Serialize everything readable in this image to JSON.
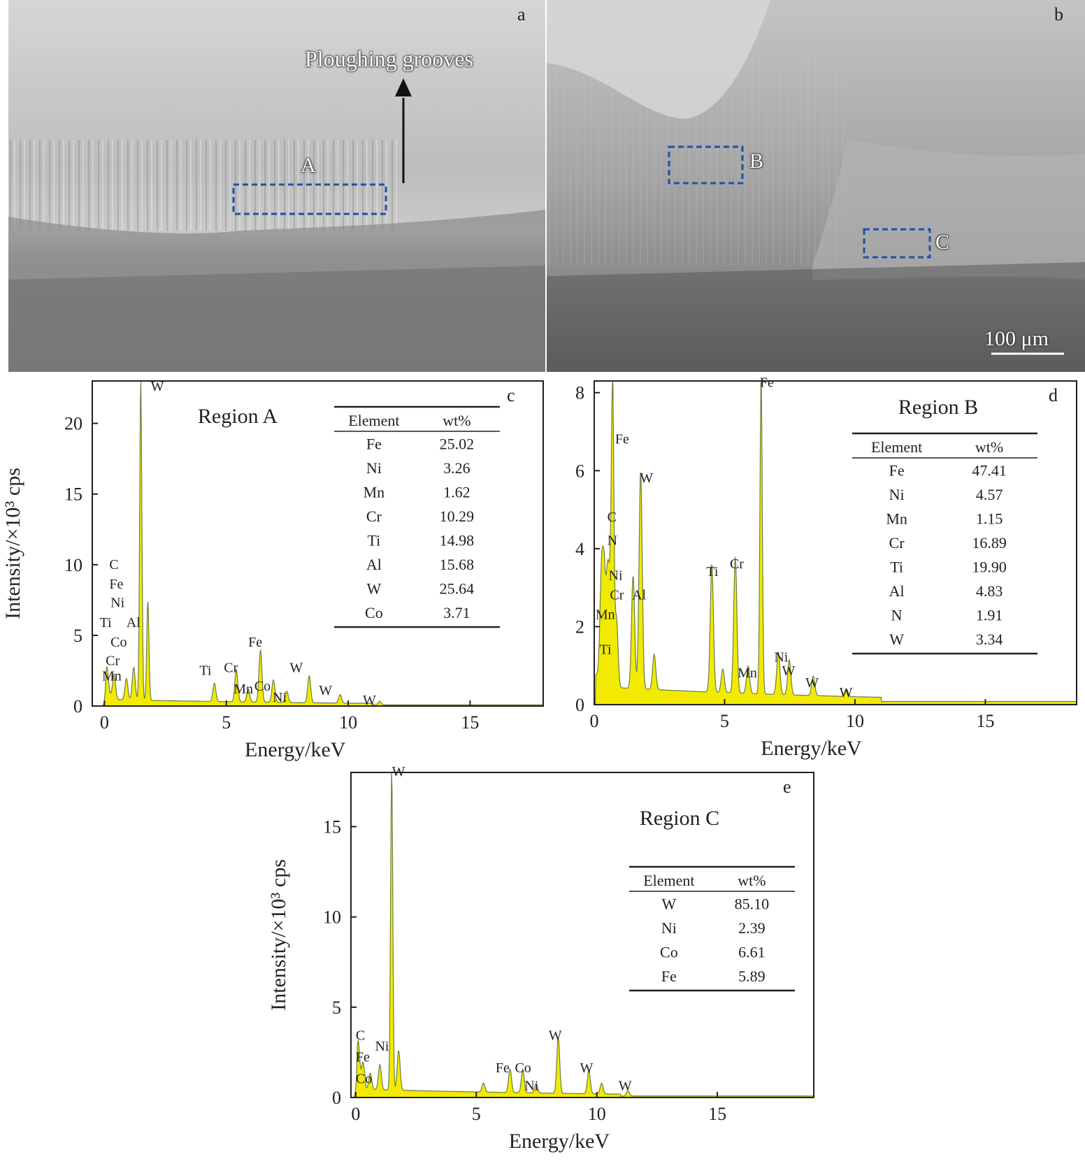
{
  "figure": {
    "panel_a": {
      "letter": "a",
      "annotation": "Ploughing grooves",
      "region_label": "A"
    },
    "panel_b": {
      "letter": "b",
      "region_label_b": "B",
      "region_label_c": "C",
      "scale_bar": "100 μm"
    }
  },
  "chart_data": [
    {
      "type": "area",
      "panel": "c",
      "title": "Region A",
      "xlabel": "Energy/keV",
      "ylabel": "Intensity/×10³ cps",
      "xlim": [
        -0.5,
        18
      ],
      "ylim": [
        0,
        23
      ],
      "x_ticks": [
        0,
        5,
        10,
        15
      ],
      "y_ticks": [
        0,
        5,
        10,
        15,
        20
      ],
      "fill_color": "#f2ea00",
      "peaks": [
        {
          "x": 0.1,
          "y": 2.0
        },
        {
          "x": 0.4,
          "y": 1.6
        },
        {
          "x": 0.9,
          "y": 1.5
        },
        {
          "x": 1.2,
          "y": 2.3
        },
        {
          "x": 1.49,
          "y": 22.6
        },
        {
          "x": 1.78,
          "y": 7.0
        },
        {
          "x": 4.51,
          "y": 1.3
        },
        {
          "x": 5.41,
          "y": 2.3
        },
        {
          "x": 5.9,
          "y": 0.9
        },
        {
          "x": 6.4,
          "y": 3.7
        },
        {
          "x": 6.93,
          "y": 1.6
        },
        {
          "x": 7.48,
          "y": 0.8
        },
        {
          "x": 8.4,
          "y": 1.9
        },
        {
          "x": 9.67,
          "y": 0.6
        },
        {
          "x": 11.29,
          "y": 0.25
        }
      ],
      "peak_labels": [
        {
          "text": "W",
          "x": 1.9,
          "y": 22.3
        },
        {
          "text": "C",
          "x": 0.2,
          "y": 9.7
        },
        {
          "text": "Fe",
          "x": 0.2,
          "y": 8.3
        },
        {
          "text": "Ni",
          "x": 0.25,
          "y": 7.0
        },
        {
          "text": "Al",
          "x": 0.9,
          "y": 5.6
        },
        {
          "text": "Ti",
          "x": -0.2,
          "y": 5.6
        },
        {
          "text": "Co",
          "x": 0.25,
          "y": 4.2
        },
        {
          "text": "Cr",
          "x": 0.05,
          "y": 2.9
        },
        {
          "text": "Mn",
          "x": -0.1,
          "y": 1.8
        },
        {
          "text": "Ti",
          "x": 3.9,
          "y": 2.2
        },
        {
          "text": "Cr",
          "x": 4.9,
          "y": 2.4
        },
        {
          "text": "Fe",
          "x": 5.9,
          "y": 4.2
        },
        {
          "text": "Mn",
          "x": 5.3,
          "y": 0.9
        },
        {
          "text": "Co",
          "x": 6.15,
          "y": 1.1
        },
        {
          "text": "Ni",
          "x": 6.9,
          "y": 0.3
        },
        {
          "text": "W",
          "x": 7.6,
          "y": 2.4
        },
        {
          "text": "W",
          "x": 8.8,
          "y": 0.8
        },
        {
          "text": "W",
          "x": 10.6,
          "y": 0.1
        }
      ],
      "table": {
        "headers": [
          "Element",
          "wt%"
        ],
        "rows": [
          [
            "Fe",
            "25.02"
          ],
          [
            "Ni",
            "3.26"
          ],
          [
            "Mn",
            "1.62"
          ],
          [
            "Cr",
            "10.29"
          ],
          [
            "Ti",
            "14.98"
          ],
          [
            "Al",
            "15.68"
          ],
          [
            "W",
            "25.64"
          ],
          [
            "Co",
            "3.71"
          ]
        ]
      }
    },
    {
      "type": "area",
      "panel": "d",
      "title": "Region B",
      "xlabel": "Energy/keV",
      "ylabel": "",
      "xlim": [
        0,
        18.5
      ],
      "ylim": [
        0,
        8.3
      ],
      "x_ticks": [
        0,
        5,
        10,
        15
      ],
      "y_ticks": [
        0,
        2,
        4,
        6,
        8
      ],
      "fill_color": "#f2ea00",
      "peaks": [
        {
          "x": 0.28,
          "y": 2.6
        },
        {
          "x": 0.39,
          "y": 2.4
        },
        {
          "x": 0.52,
          "y": 2.7
        },
        {
          "x": 0.64,
          "y": 2.4
        },
        {
          "x": 0.71,
          "y": 6.7
        },
        {
          "x": 0.85,
          "y": 1.8
        },
        {
          "x": 1.49,
          "y": 2.9
        },
        {
          "x": 1.78,
          "y": 5.6
        },
        {
          "x": 2.3,
          "y": 0.9
        },
        {
          "x": 4.51,
          "y": 3.3
        },
        {
          "x": 4.93,
          "y": 0.6
        },
        {
          "x": 5.41,
          "y": 3.5
        },
        {
          "x": 5.9,
          "y": 0.7
        },
        {
          "x": 6.4,
          "y": 8.1
        },
        {
          "x": 7.06,
          "y": 1.1
        },
        {
          "x": 7.48,
          "y": 0.9
        },
        {
          "x": 8.4,
          "y": 0.5
        },
        {
          "x": 9.67,
          "y": 0.2
        }
      ],
      "peak_labels": [
        {
          "text": "Fe",
          "x": 6.35,
          "y": 8.15
        },
        {
          "text": "Fe",
          "x": 0.8,
          "y": 6.7
        },
        {
          "text": "W",
          "x": 1.75,
          "y": 5.7
        },
        {
          "text": "C",
          "x": 0.5,
          "y": 4.7
        },
        {
          "text": "N",
          "x": 0.5,
          "y": 4.1
        },
        {
          "text": "Ni",
          "x": 0.55,
          "y": 3.2
        },
        {
          "text": "Cr",
          "x": 0.6,
          "y": 2.7
        },
        {
          "text": "Al",
          "x": 1.45,
          "y": 2.7
        },
        {
          "text": "Mn",
          "x": 0.05,
          "y": 2.2
        },
        {
          "text": "Ti",
          "x": 0.2,
          "y": 1.3
        },
        {
          "text": "Ti",
          "x": 4.3,
          "y": 3.3
        },
        {
          "text": "Cr",
          "x": 5.2,
          "y": 3.5
        },
        {
          "text": "Mn",
          "x": 5.5,
          "y": 0.7
        },
        {
          "text": "Ni",
          "x": 6.9,
          "y": 1.1
        },
        {
          "text": "W",
          "x": 7.2,
          "y": 0.75
        },
        {
          "text": "W",
          "x": 8.1,
          "y": 0.45
        },
        {
          "text": "W",
          "x": 9.4,
          "y": 0.2
        }
      ],
      "table": {
        "headers": [
          "Element",
          "wt%"
        ],
        "rows": [
          [
            "Fe",
            "47.41"
          ],
          [
            "Ni",
            "4.57"
          ],
          [
            "Mn",
            "1.15"
          ],
          [
            "Cr",
            "16.89"
          ],
          [
            "Ti",
            "19.90"
          ],
          [
            "Al",
            "4.83"
          ],
          [
            "N",
            "1.91"
          ],
          [
            "W",
            "3.34"
          ]
        ]
      }
    },
    {
      "type": "area",
      "panel": "e",
      "title": "Region C",
      "xlabel": "Energy/keV",
      "ylabel": "Intensity/×10³ cps",
      "xlim": [
        -0.2,
        19
      ],
      "ylim": [
        0,
        18
      ],
      "x_ticks": [
        0,
        5,
        10,
        15
      ],
      "y_ticks": [
        0,
        5,
        10,
        15
      ],
      "fill_color": "#f2ea00",
      "peaks": [
        {
          "x": 0.1,
          "y": 2.4
        },
        {
          "x": 0.3,
          "y": 1.2
        },
        {
          "x": 0.6,
          "y": 0.9
        },
        {
          "x": 1.0,
          "y": 1.4
        },
        {
          "x": 1.49,
          "y": 17.8
        },
        {
          "x": 1.78,
          "y": 2.2
        },
        {
          "x": 5.3,
          "y": 0.5
        },
        {
          "x": 6.4,
          "y": 1.3
        },
        {
          "x": 6.93,
          "y": 1.3
        },
        {
          "x": 7.48,
          "y": 0.5
        },
        {
          "x": 8.4,
          "y": 3.1
        },
        {
          "x": 9.67,
          "y": 1.3
        },
        {
          "x": 10.2,
          "y": 0.6
        },
        {
          "x": 11.29,
          "y": 0.3
        }
      ],
      "peak_labels": [
        {
          "text": "W",
          "x": 1.5,
          "y": 17.8
        },
        {
          "text": "C",
          "x": 0.0,
          "y": 3.2
        },
        {
          "text": "Ni",
          "x": 0.8,
          "y": 2.6
        },
        {
          "text": "Fe",
          "x": 0.0,
          "y": 2.0
        },
        {
          "text": "Co",
          "x": 0.0,
          "y": 0.8
        },
        {
          "text": "Fe",
          "x": 5.8,
          "y": 1.4
        },
        {
          "text": "Co",
          "x": 6.6,
          "y": 1.4
        },
        {
          "text": "Ni",
          "x": 7.0,
          "y": 0.4
        },
        {
          "text": "W",
          "x": 8.0,
          "y": 3.2
        },
        {
          "text": "W",
          "x": 9.3,
          "y": 1.4
        },
        {
          "text": "W",
          "x": 10.9,
          "y": 0.4
        }
      ],
      "table": {
        "headers": [
          "Element",
          "wt%"
        ],
        "rows": [
          [
            "W",
            "85.10"
          ],
          [
            "Ni",
            "2.39"
          ],
          [
            "Co",
            "6.61"
          ],
          [
            "Fe",
            "5.89"
          ]
        ]
      }
    }
  ]
}
